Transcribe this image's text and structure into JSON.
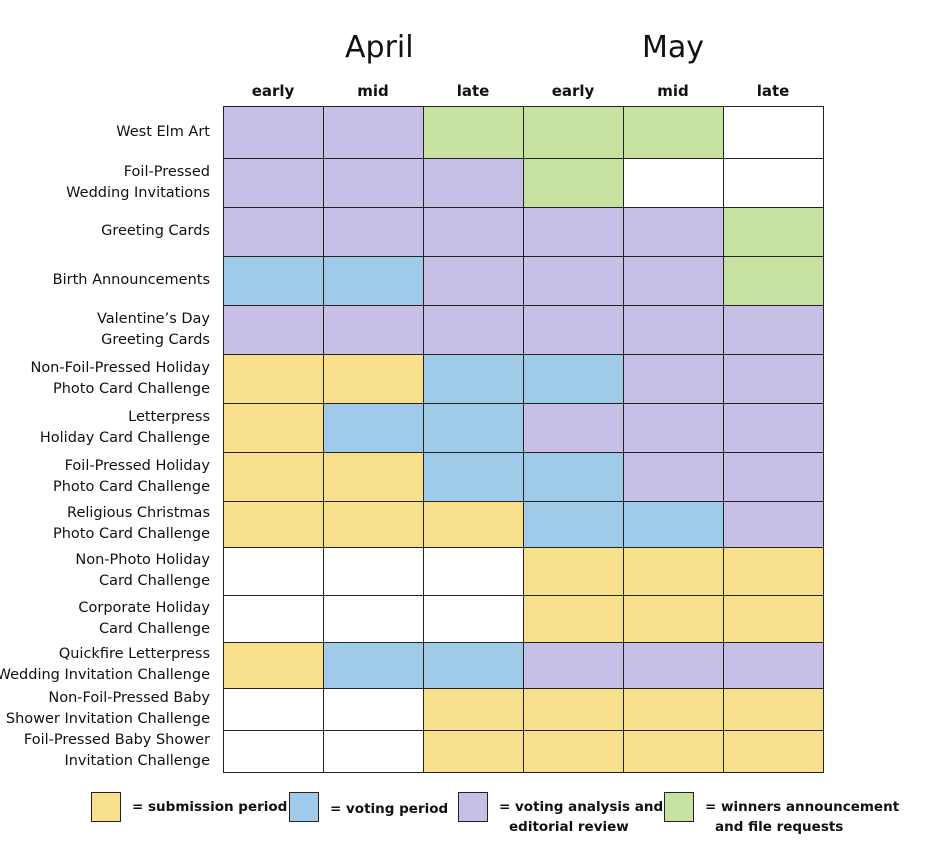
{
  "months": [
    "April",
    "May"
  ],
  "periods": [
    "early",
    "mid",
    "late",
    "early",
    "mid",
    "late"
  ],
  "colors": {
    "S": "#f8df8b",
    "V": "#a0cbe8",
    "A": "#c8bfe6",
    "W": "#c7e2a0",
    "_": "#ffffff"
  },
  "rows": [
    {
      "label": [
        "West Elm Art"
      ],
      "cells": [
        "A",
        "A",
        "W",
        "W",
        "W",
        "_"
      ]
    },
    {
      "label": [
        "Foil-Pressed",
        "Wedding Invitations"
      ],
      "cells": [
        "A",
        "A",
        "A",
        "W",
        "_",
        "_"
      ]
    },
    {
      "label": [
        "Greeting Cards"
      ],
      "cells": [
        "A",
        "A",
        "A",
        "A",
        "A",
        "W"
      ]
    },
    {
      "label": [
        "Birth Announcements"
      ],
      "cells": [
        "V",
        "V",
        "A",
        "A",
        "A",
        "W"
      ]
    },
    {
      "label": [
        "Valentine’s Day",
        "Greeting Cards"
      ],
      "cells": [
        "A",
        "A",
        "A",
        "A",
        "A",
        "A"
      ]
    },
    {
      "label": [
        "Non-Foil-Pressed Holiday",
        "Photo Card Challenge"
      ],
      "cells": [
        "S",
        "S",
        "V",
        "V",
        "A",
        "A"
      ]
    },
    {
      "label": [
        "Letterpress",
        "Holiday Card Challenge"
      ],
      "cells": [
        "S",
        "V",
        "V",
        "A",
        "A",
        "A"
      ]
    },
    {
      "label": [
        "Foil-Pressed Holiday",
        "Photo Card Challenge"
      ],
      "cells": [
        "S",
        "S",
        "V",
        "V",
        "A",
        "A"
      ]
    },
    {
      "label": [
        "Religious Christmas",
        "Photo Card Challenge"
      ],
      "cells": [
        "S",
        "S",
        "S",
        "V",
        "V",
        "A"
      ]
    },
    {
      "label": [
        "Non-Photo Holiday",
        "Card Challenge"
      ],
      "cells": [
        "_",
        "_",
        "_",
        "S",
        "S",
        "S"
      ]
    },
    {
      "label": [
        "Corporate Holiday",
        "Card Challenge"
      ],
      "cells": [
        "_",
        "_",
        "_",
        "S",
        "S",
        "S"
      ]
    },
    {
      "label": [
        "Quickfire Letterpress",
        "Wedding Invitation Challenge"
      ],
      "cells": [
        "S",
        "V",
        "V",
        "A",
        "A",
        "A"
      ]
    },
    {
      "label": [
        "Non-Foil-Pressed Baby",
        "Shower Invitation Challenge"
      ],
      "cells": [
        "_",
        "_",
        "S",
        "S",
        "S",
        "S"
      ]
    },
    {
      "label": [
        "Foil-Pressed Baby Shower",
        "Invitation Challenge"
      ],
      "cells": [
        "_",
        "_",
        "S",
        "S",
        "S",
        "S"
      ]
    }
  ],
  "legend": [
    {
      "key": "S",
      "text": [
        "= submission period"
      ]
    },
    {
      "key": "V",
      "text": [
        "= voting period"
      ]
    },
    {
      "key": "A",
      "text": [
        "= voting analysis and",
        "editorial review"
      ]
    },
    {
      "key": "W",
      "text": [
        "= winners announcement",
        "and file requests"
      ]
    }
  ]
}
